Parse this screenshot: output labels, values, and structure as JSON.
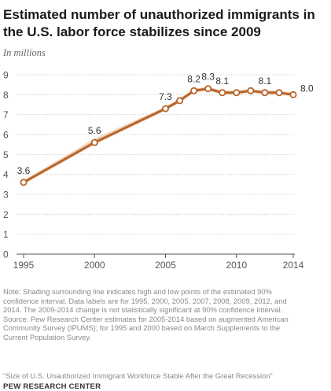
{
  "header": {
    "title": "Estimated number of unauthorized immigrants in the U.S. labor force stabilizes since 2009",
    "subtitle": "In millions"
  },
  "chart_data": {
    "type": "line",
    "title": "Estimated number of unauthorized immigrants in the U.S. labor force stabilizes since 2009",
    "subtitle": "In millions",
    "x": [
      1995,
      2000,
      2005,
      2006,
      2007,
      2008,
      2009,
      2010,
      2011,
      2012,
      2013,
      2014
    ],
    "series": [
      {
        "values": [
          3.6,
          5.6,
          7.3,
          7.7,
          8.2,
          8.3,
          8.1,
          8.1,
          8.2,
          8.1,
          8.1,
          8.0
        ],
        "interval_low": [
          3.5,
          5.5,
          7.2,
          7.6,
          8.1,
          8.2,
          8.0,
          8.0,
          8.1,
          8.0,
          8.0,
          7.9
        ],
        "interval_high": [
          3.7,
          5.8,
          7.4,
          7.8,
          8.3,
          8.4,
          8.2,
          8.2,
          8.3,
          8.2,
          8.2,
          8.1
        ]
      }
    ],
    "data_labels": [
      {
        "x": 1995,
        "label": "3.6"
      },
      {
        "x": 2000,
        "label": "5.6"
      },
      {
        "x": 2005,
        "label": "7.3"
      },
      {
        "x": 2007,
        "label": "8.2"
      },
      {
        "x": 2008,
        "label": "8.3"
      },
      {
        "x": 2009,
        "label": "8.1"
      },
      {
        "x": 2012,
        "label": "8.1"
      },
      {
        "x": 2014,
        "label": "8.0"
      }
    ],
    "xticks": [
      "1995",
      "2000",
      "2005",
      "2010",
      "2014"
    ],
    "xtick_values": [
      1995,
      2000,
      2005,
      2010,
      2014
    ],
    "yticks": [
      "0",
      "1",
      "2",
      "3",
      "4",
      "5",
      "6",
      "7",
      "8",
      "9"
    ],
    "ylim": [
      0,
      9
    ],
    "xlim": [
      1995,
      2014
    ],
    "grid": "horizontal dotted",
    "line_color": "#b8652a",
    "band_color": "#f0d2b8",
    "marker_fill": "#ffffff"
  },
  "footer": {
    "note_lines": [
      "Note: Shading surrounding line indicates high and low points of the estimated 90%",
      "confidence interval. Data labels are for 1995, 2000, 2005, 2007, 2008, 2009, 2012, and",
      "2014. The 2009-2014 change is not statistically significant at 90% confidence interval.",
      "Source: Pew Research Center estimates for 2005-2014 based on augmented American",
      "Community Survey (IPUMS); for 1995 and 2000 based on March Supplements to the",
      "Current Population Survey."
    ],
    "report_title": "“Size of U.S. Unauthorized Immigrant Workforce Stable After the Great Recession”",
    "org": "PEW RESEARCH CENTER"
  }
}
